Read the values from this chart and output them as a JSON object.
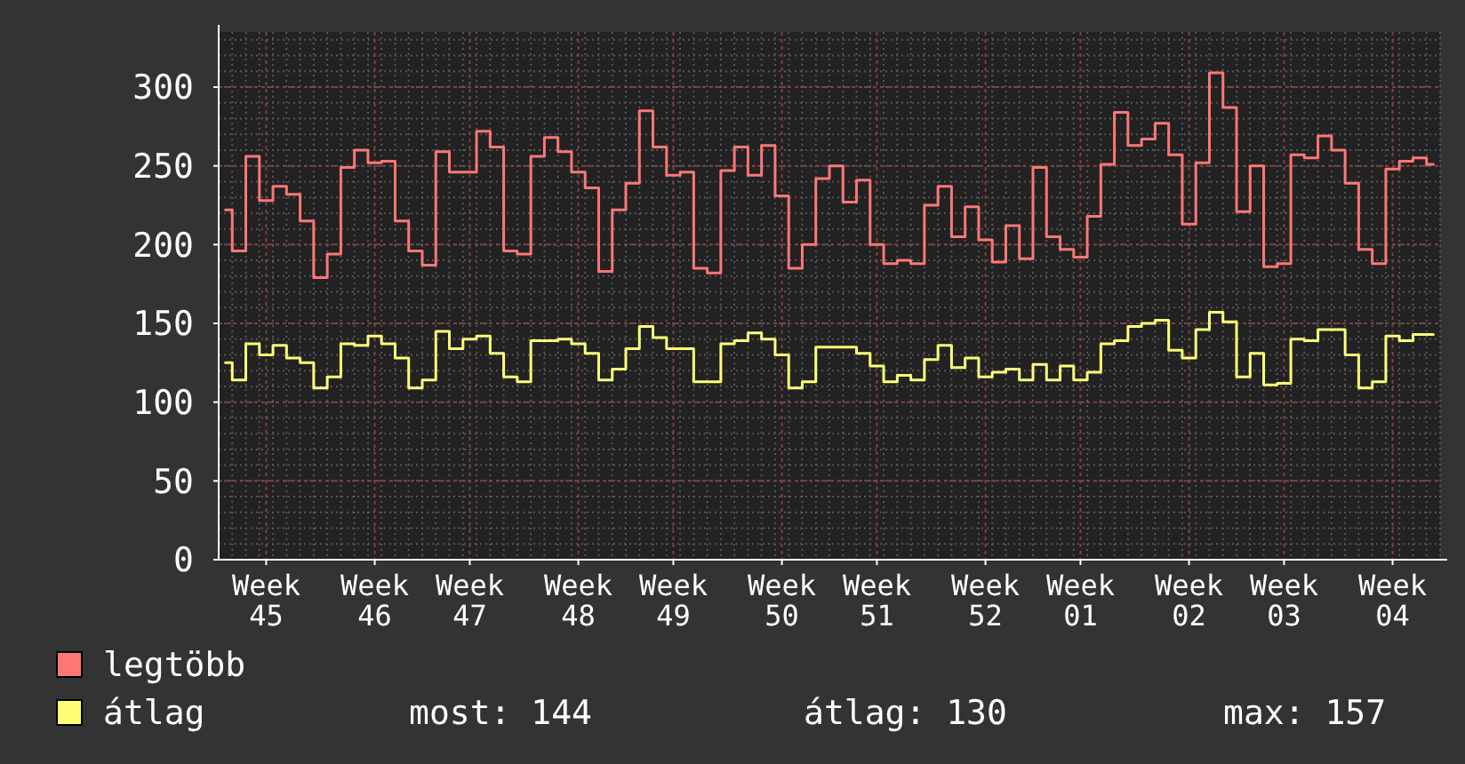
{
  "chart_data": {
    "type": "step",
    "ylim": [
      0,
      335
    ],
    "categories": [
      null,
      null,
      null,
      "Week 45",
      null,
      null,
      null,
      null,
      null,
      null,
      null,
      "Week 46",
      null,
      null,
      null,
      null,
      null,
      null,
      "Week 47",
      null,
      null,
      null,
      null,
      null,
      null,
      null,
      "Week 48",
      null,
      null,
      null,
      null,
      null,
      null,
      "Week 49",
      null,
      null,
      null,
      null,
      null,
      null,
      null,
      "Week 50",
      null,
      null,
      null,
      null,
      null,
      null,
      "Week 51",
      null,
      null,
      null,
      null,
      null,
      null,
      null,
      "Week 52",
      null,
      null,
      null,
      null,
      null,
      null,
      "Week 01",
      null,
      null,
      null,
      null,
      null,
      null,
      null,
      "Week 02",
      null,
      null,
      null,
      null,
      null,
      null,
      "Week 03",
      null,
      null,
      null,
      null,
      null,
      null,
      null,
      "Week 04",
      null,
      null,
      null
    ],
    "yticks": [
      0,
      50,
      100,
      150,
      200,
      250,
      300
    ],
    "grid": true,
    "legend": "bottom",
    "annotations": [
      "most: 144",
      "átlag: 130",
      "max: 157"
    ],
    "series": [
      {
        "name": "legtöbb",
        "color": "#ff7777",
        "values": [
          222,
          196,
          256,
          228,
          237,
          232,
          215,
          179,
          194,
          249,
          260,
          252,
          253,
          215,
          196,
          187,
          259,
          246,
          246,
          272,
          262,
          196,
          194,
          256,
          268,
          259,
          246,
          236,
          183,
          222,
          239,
          285,
          262,
          244,
          246,
          185,
          182,
          247,
          262,
          244,
          263,
          231,
          185,
          200,
          242,
          250,
          227,
          241,
          200,
          188,
          190,
          188,
          225,
          237,
          205,
          224,
          203,
          189,
          212,
          191,
          249,
          205,
          197,
          192,
          218,
          251,
          284,
          263,
          267,
          277,
          257,
          213,
          252,
          309,
          287,
          221,
          250,
          186,
          188,
          257,
          255,
          269,
          260,
          239,
          197,
          188,
          248,
          253,
          255,
          251
        ]
      },
      {
        "name": "átlag",
        "color": "#ffff77",
        "values": [
          125,
          114,
          137,
          130,
          136,
          128,
          125,
          109,
          116,
          137,
          136,
          142,
          137,
          128,
          109,
          114,
          145,
          134,
          140,
          142,
          131,
          116,
          113,
          139,
          139,
          140,
          137,
          131,
          114,
          121,
          134,
          148,
          141,
          134,
          134,
          113,
          113,
          137,
          139,
          144,
          140,
          130,
          109,
          113,
          135,
          135,
          135,
          131,
          123,
          113,
          117,
          114,
          127,
          136,
          122,
          128,
          116,
          119,
          121,
          114,
          124,
          114,
          123,
          114,
          119,
          137,
          139,
          148,
          150,
          152,
          133,
          128,
          146,
          157,
          151,
          116,
          131,
          111,
          112,
          140,
          139,
          146,
          146,
          130,
          109,
          113,
          142,
          139,
          143,
          143
        ]
      }
    ]
  }
}
